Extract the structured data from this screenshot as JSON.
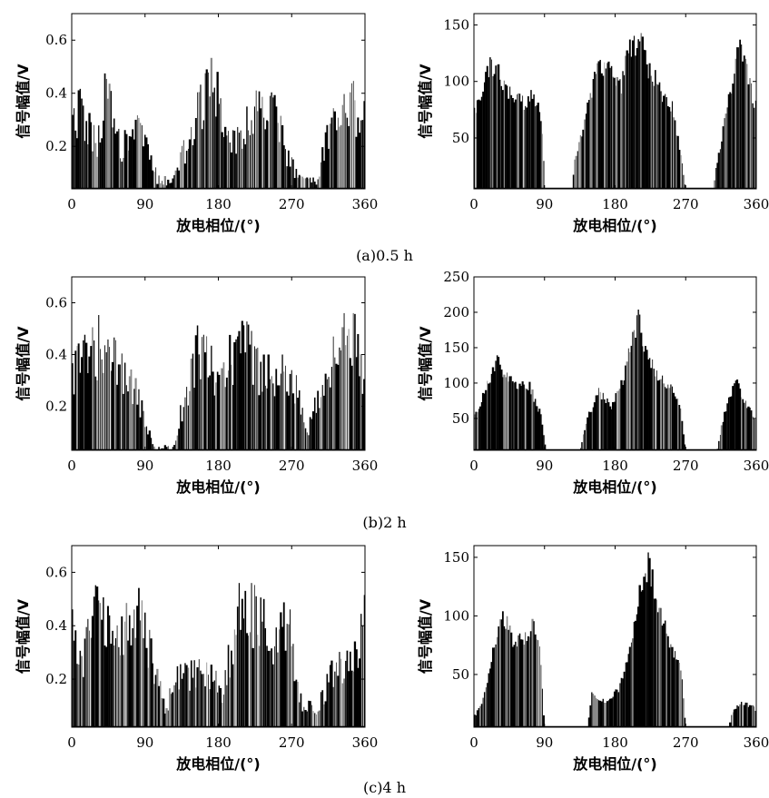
{
  "captions": [
    "(a)0.5 h",
    "(b)2 h",
    "(c)4 h"
  ],
  "chart_data": [
    {
      "type": "bar",
      "group": 0,
      "col": 0,
      "xlabel": "放电相位/(°)",
      "ylabel": "信号幅值/V",
      "xlim": [
        0,
        360
      ],
      "ylim": [
        0.04,
        0.7
      ],
      "xticks": [
        0,
        90,
        180,
        270,
        360
      ],
      "yticks": [
        0.2,
        0.4,
        0.6
      ],
      "ytick_labels": [
        "0.2",
        "0.4",
        "0.6"
      ],
      "peak_envelope": [
        [
          0,
          0.36
        ],
        [
          10,
          0.42
        ],
        [
          30,
          0.26
        ],
        [
          42,
          0.5
        ],
        [
          60,
          0.24
        ],
        [
          80,
          0.32
        ],
        [
          95,
          0.24
        ],
        [
          105,
          0.1
        ],
        [
          125,
          0.08
        ],
        [
          150,
          0.37
        ],
        [
          175,
          0.56
        ],
        [
          195,
          0.24
        ],
        [
          215,
          0.38
        ],
        [
          245,
          0.46
        ],
        [
          262,
          0.25
        ],
        [
          275,
          0.12
        ],
        [
          300,
          0.08
        ],
        [
          325,
          0.45
        ],
        [
          340,
          0.48
        ],
        [
          360,
          0.37
        ]
      ],
      "density": 0.55,
      "floor": 0.04,
      "bar_count": 190
    },
    {
      "type": "bar",
      "group": 0,
      "col": 1,
      "xlabel": "放电相位/(°)",
      "ylabel": "信号幅值/V",
      "xlim": [
        0,
        360
      ],
      "ylim": [
        5,
        160
      ],
      "xticks": [
        0,
        90,
        180,
        270,
        360
      ],
      "yticks": [
        50,
        100,
        150
      ],
      "ytick_labels": [
        "50",
        "100",
        "150"
      ],
      "peak_envelope": [
        [
          0,
          75
        ],
        [
          8,
          90
        ],
        [
          15,
          118
        ],
        [
          28,
          130
        ],
        [
          38,
          105
        ],
        [
          45,
          100
        ],
        [
          60,
          88
        ],
        [
          80,
          95
        ],
        [
          88,
          60
        ],
        [
          90,
          5
        ],
        [
          125,
          5
        ],
        [
          130,
          40
        ],
        [
          140,
          65
        ],
        [
          155,
          115
        ],
        [
          170,
          125
        ],
        [
          185,
          100
        ],
        [
          200,
          140
        ],
        [
          210,
          155
        ],
        [
          225,
          118
        ],
        [
          240,
          100
        ],
        [
          255,
          80
        ],
        [
          270,
          5
        ],
        [
          305,
          5
        ],
        [
          310,
          30
        ],
        [
          320,
          75
        ],
        [
          338,
          140
        ],
        [
          355,
          100
        ],
        [
          360,
          80
        ]
      ],
      "density": 0.82,
      "floor": 5,
      "bar_count": 200
    },
    {
      "type": "bar",
      "group": 1,
      "col": 0,
      "xlabel": "放电相位/(°)",
      "ylabel": "信号幅值/V",
      "xlim": [
        0,
        360
      ],
      "ylim": [
        0.03,
        0.7
      ],
      "xticks": [
        0,
        90,
        180,
        270,
        360
      ],
      "yticks": [
        0.2,
        0.4,
        0.6
      ],
      "ytick_labels": [
        "0.2",
        "0.4",
        "0.6"
      ],
      "peak_envelope": [
        [
          0,
          0.4
        ],
        [
          20,
          0.5
        ],
        [
          35,
          0.56
        ],
        [
          55,
          0.45
        ],
        [
          75,
          0.35
        ],
        [
          90,
          0.18
        ],
        [
          100,
          0.05
        ],
        [
          125,
          0.05
        ],
        [
          140,
          0.32
        ],
        [
          155,
          0.56
        ],
        [
          180,
          0.4
        ],
        [
          210,
          0.56
        ],
        [
          235,
          0.4
        ],
        [
          270,
          0.4
        ],
        [
          290,
          0.12
        ],
        [
          310,
          0.4
        ],
        [
          330,
          0.56
        ],
        [
          350,
          0.56
        ],
        [
          360,
          0.38
        ]
      ],
      "density": 0.55,
      "floor": 0.03,
      "bar_count": 190
    },
    {
      "type": "bar",
      "group": 1,
      "col": 1,
      "xlabel": "放电相位/(°)",
      "ylabel": "信号幅值/V",
      "xlim": [
        0,
        360
      ],
      "ylim": [
        5,
        250
      ],
      "xticks": [
        0,
        90,
        180,
        270,
        360
      ],
      "yticks": [
        50,
        100,
        150,
        200,
        250
      ],
      "ytick_labels": [
        "50",
        "100",
        "150",
        "200",
        "250"
      ],
      "peak_envelope": [
        [
          0,
          55
        ],
        [
          10,
          80
        ],
        [
          20,
          115
        ],
        [
          30,
          140
        ],
        [
          40,
          120
        ],
        [
          55,
          100
        ],
        [
          70,
          105
        ],
        [
          85,
          60
        ],
        [
          92,
          5
        ],
        [
          135,
          5
        ],
        [
          145,
          55
        ],
        [
          160,
          95
        ],
        [
          175,
          70
        ],
        [
          190,
          110
        ],
        [
          200,
          165
        ],
        [
          210,
          205
        ],
        [
          220,
          150
        ],
        [
          235,
          120
        ],
        [
          250,
          100
        ],
        [
          262,
          80
        ],
        [
          270,
          5
        ],
        [
          310,
          5
        ],
        [
          320,
          65
        ],
        [
          335,
          110
        ],
        [
          350,
          70
        ],
        [
          360,
          50
        ]
      ],
      "density": 0.85,
      "floor": 5,
      "bar_count": 200
    },
    {
      "type": "bar",
      "group": 2,
      "col": 0,
      "xlabel": "放电相位/(°)",
      "ylabel": "信号幅值/V",
      "xlim": [
        0,
        360
      ],
      "ylim": [
        0.02,
        0.7
      ],
      "xticks": [
        0,
        90,
        180,
        270,
        360
      ],
      "yticks": [
        0.2,
        0.4,
        0.6
      ],
      "ytick_labels": [
        "0.2",
        "0.4",
        "0.6"
      ],
      "peak_envelope": [
        [
          0,
          0.5
        ],
        [
          15,
          0.36
        ],
        [
          30,
          0.56
        ],
        [
          50,
          0.45
        ],
        [
          70,
          0.5
        ],
        [
          88,
          0.56
        ],
        [
          100,
          0.3
        ],
        [
          115,
          0.12
        ],
        [
          130,
          0.25
        ],
        [
          160,
          0.3
        ],
        [
          185,
          0.2
        ],
        [
          205,
          0.56
        ],
        [
          225,
          0.56
        ],
        [
          245,
          0.45
        ],
        [
          265,
          0.56
        ],
        [
          280,
          0.15
        ],
        [
          300,
          0.1
        ],
        [
          325,
          0.32
        ],
        [
          345,
          0.3
        ],
        [
          360,
          0.53
        ]
      ],
      "density": 0.55,
      "floor": 0.02,
      "bar_count": 190
    },
    {
      "type": "bar",
      "group": 2,
      "col": 1,
      "xlabel": "放电相位/(°)",
      "ylabel": "信号幅值/V",
      "xlim": [
        0,
        360
      ],
      "ylim": [
        5,
        160
      ],
      "xticks": [
        0,
        90,
        180,
        270,
        360
      ],
      "yticks": [
        50,
        100,
        150
      ],
      "ytick_labels": [
        "50",
        "100",
        "150"
      ],
      "peak_envelope": [
        [
          0,
          15
        ],
        [
          10,
          25
        ],
        [
          20,
          60
        ],
        [
          30,
          90
        ],
        [
          38,
          108
        ],
        [
          50,
          85
        ],
        [
          65,
          85
        ],
        [
          75,
          100
        ],
        [
          85,
          70
        ],
        [
          90,
          5
        ],
        [
          145,
          5
        ],
        [
          150,
          35
        ],
        [
          160,
          30
        ],
        [
          170,
          30
        ],
        [
          185,
          40
        ],
        [
          200,
          85
        ],
        [
          212,
          130
        ],
        [
          222,
          155
        ],
        [
          235,
          120
        ],
        [
          248,
          85
        ],
        [
          265,
          55
        ],
        [
          270,
          5
        ],
        [
          325,
          5
        ],
        [
          330,
          20
        ],
        [
          340,
          28
        ],
        [
          355,
          25
        ],
        [
          360,
          20
        ]
      ],
      "density": 0.85,
      "floor": 5,
      "bar_count": 200
    }
  ]
}
